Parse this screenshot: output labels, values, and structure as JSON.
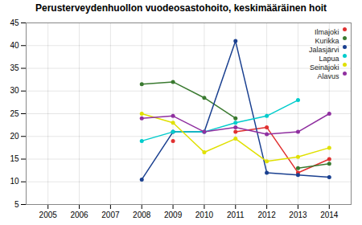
{
  "chart_data": {
    "type": "line",
    "title": "Perusterveydenhuollon vuodeosastohoito, keskimääräinen hoit",
    "x": [
      2008,
      2009,
      2010,
      2011,
      2012,
      2013,
      2014
    ],
    "series": [
      {
        "name": "Ilmajoki",
        "color": "#e03030",
        "values": [
          null,
          19,
          null,
          21,
          22,
          12,
          15
        ]
      },
      {
        "name": "Kurikka",
        "color": "#3a7a30",
        "values": [
          31.5,
          32,
          28.5,
          24,
          null,
          13,
          14
        ]
      },
      {
        "name": "Jalasjärvi",
        "color": "#1a4090",
        "values": [
          10.5,
          21,
          21,
          41,
          12,
          11.5,
          11
        ]
      },
      {
        "name": "Lapua",
        "color": "#00cccc",
        "values": [
          19,
          21,
          21,
          23,
          24.5,
          28,
          null
        ]
      },
      {
        "name": "Seinäjoki",
        "color": "#e0e000",
        "values": [
          25,
          23,
          16.5,
          19.5,
          14.5,
          15.5,
          17.5
        ]
      },
      {
        "name": "Alavus",
        "color": "#9030a0",
        "values": [
          24,
          24.5,
          21,
          22,
          20.5,
          21,
          25
        ]
      }
    ],
    "xlim": [
      2004.3,
      2014.7
    ],
    "xticks": [
      2005,
      2006,
      2007,
      2008,
      2009,
      2010,
      2011,
      2012,
      2013,
      2014
    ],
    "ylim": [
      5,
      45
    ],
    "yticks": [
      5,
      10,
      15,
      20,
      25,
      30,
      35,
      40,
      45
    ],
    "grid": true,
    "legend": "upper right",
    "marker": "o"
  }
}
